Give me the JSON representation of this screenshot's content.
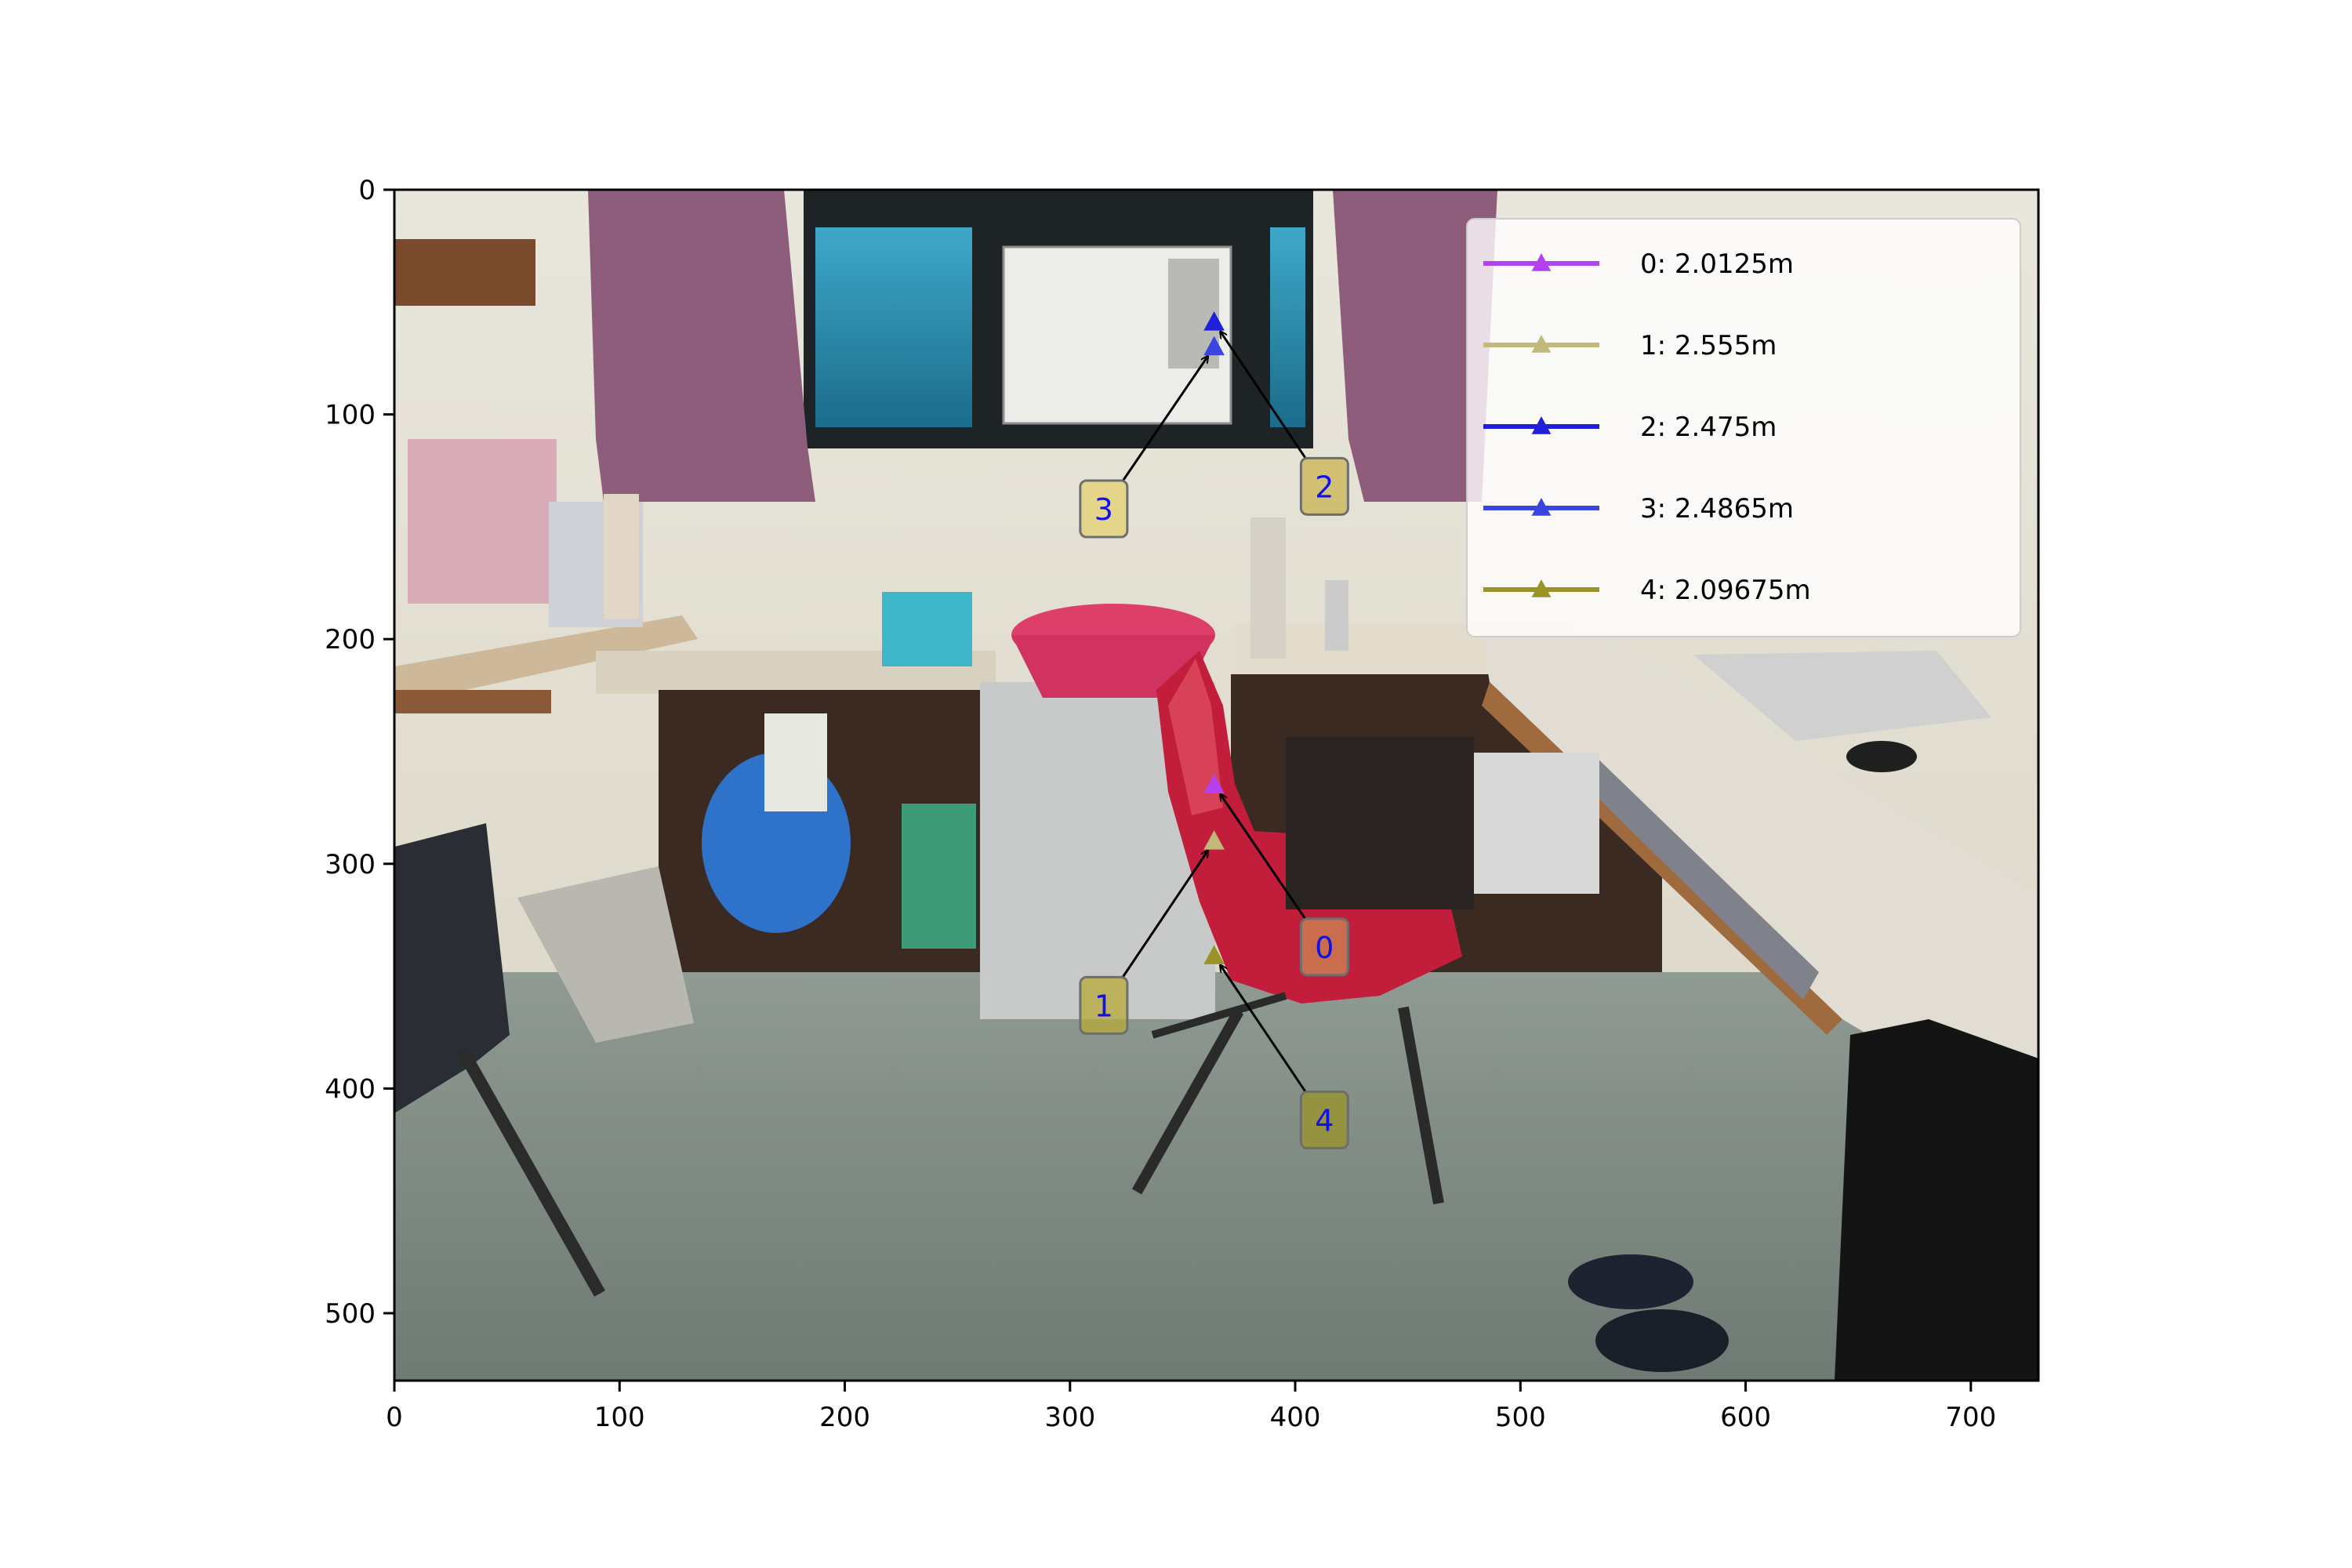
{
  "chart_data": {
    "type": "scatter",
    "image_extent": {
      "x": [
        0,
        730
      ],
      "y": [
        530,
        0
      ]
    },
    "xlim": [
      0,
      730
    ],
    "ylim": [
      530,
      0
    ],
    "x_ticks": [
      0,
      100,
      200,
      300,
      400,
      500,
      600,
      700
    ],
    "y_ticks": [
      0,
      100,
      200,
      300,
      400,
      500
    ],
    "grid": false,
    "legend_placement": "top-right",
    "points": [
      {
        "id": "0",
        "label": "0: 2.0125m",
        "x": 364,
        "y": 265,
        "color": "#b341f0",
        "box_color": "#cc8855",
        "text_x": 413,
        "text_y": 337
      },
      {
        "id": "1",
        "label": "1: 2.555m",
        "x": 364,
        "y": 290,
        "color": "#c2b87a",
        "box_color": "#b8a83a",
        "text_x": 315,
        "text_y": 363
      },
      {
        "id": "2",
        "label": "2: 2.475m",
        "x": 364,
        "y": 59,
        "color": "#1f1fdc",
        "box_color": "#c9b352",
        "text_x": 413,
        "text_y": 132
      },
      {
        "id": "3",
        "label": "3: 2.4865m",
        "x": 364,
        "y": 70,
        "color": "#3a44e0",
        "box_color": "#e3d070",
        "text_x": 315,
        "text_y": 142
      },
      {
        "id": "4",
        "label": "4: 2.09675m",
        "x": 364,
        "y": 341,
        "color": "#9a9428",
        "box_color": "#9a9428",
        "text_x": 413,
        "text_y": 414
      }
    ]
  }
}
